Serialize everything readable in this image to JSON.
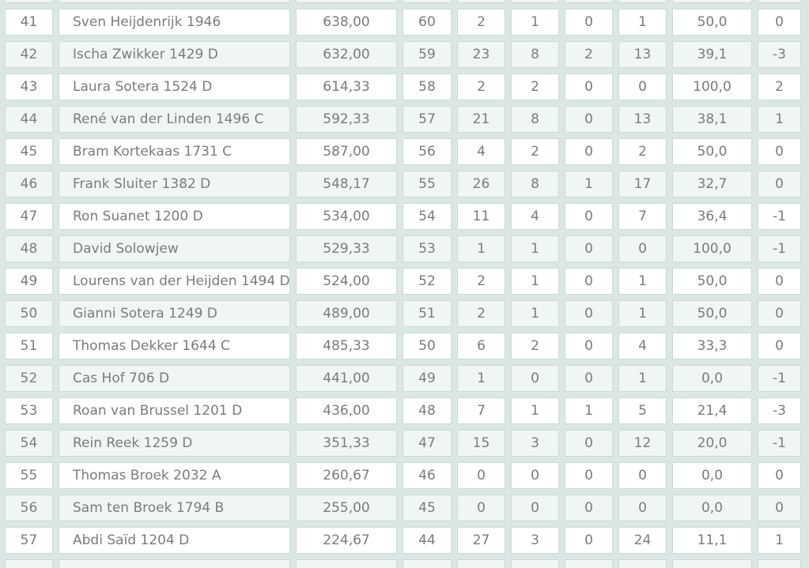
{
  "table": {
    "description": "standings-table-page-rows-41-57",
    "rows": [
      {
        "rank": "41",
        "player": "Sven Heijdenrijk 1946",
        "points": "638,00",
        "number": "60",
        "played": "2",
        "won": "1",
        "drawn": "0",
        "lost": "1",
        "percentage": "50,0",
        "change": "0"
      },
      {
        "rank": "42",
        "player": "Ischa Zwikker 1429 D",
        "points": "632,00",
        "number": "59",
        "played": "23",
        "won": "8",
        "drawn": "2",
        "lost": "13",
        "percentage": "39,1",
        "change": "-3"
      },
      {
        "rank": "43",
        "player": "Laura Sotera 1524 D",
        "points": "614,33",
        "number": "58",
        "played": "2",
        "won": "2",
        "drawn": "0",
        "lost": "0",
        "percentage": "100,0",
        "change": "2"
      },
      {
        "rank": "44",
        "player": "René van der Linden 1496 C",
        "points": "592,33",
        "number": "57",
        "played": "21",
        "won": "8",
        "drawn": "0",
        "lost": "13",
        "percentage": "38,1",
        "change": "1"
      },
      {
        "rank": "45",
        "player": "Bram Kortekaas 1731 C",
        "points": "587,00",
        "number": "56",
        "played": "4",
        "won": "2",
        "drawn": "0",
        "lost": "2",
        "percentage": "50,0",
        "change": "0"
      },
      {
        "rank": "46",
        "player": "Frank Sluiter 1382 D",
        "points": "548,17",
        "number": "55",
        "played": "26",
        "won": "8",
        "drawn": "1",
        "lost": "17",
        "percentage": "32,7",
        "change": "0"
      },
      {
        "rank": "47",
        "player": "Ron Suanet 1200 D",
        "points": "534,00",
        "number": "54",
        "played": "11",
        "won": "4",
        "drawn": "0",
        "lost": "7",
        "percentage": "36,4",
        "change": "-1"
      },
      {
        "rank": "48",
        "player": "David Solowjew",
        "points": "529,33",
        "number": "53",
        "played": "1",
        "won": "1",
        "drawn": "0",
        "lost": "0",
        "percentage": "100,0",
        "change": "-1"
      },
      {
        "rank": "49",
        "player": "Lourens van der Heijden 1494 D",
        "points": "524,00",
        "number": "52",
        "played": "2",
        "won": "1",
        "drawn": "0",
        "lost": "1",
        "percentage": "50,0",
        "change": "0"
      },
      {
        "rank": "50",
        "player": "Gianni Sotera 1249 D",
        "points": "489,00",
        "number": "51",
        "played": "2",
        "won": "1",
        "drawn": "0",
        "lost": "1",
        "percentage": "50,0",
        "change": "0"
      },
      {
        "rank": "51",
        "player": "Thomas Dekker 1644 C",
        "points": "485,33",
        "number": "50",
        "played": "6",
        "won": "2",
        "drawn": "0",
        "lost": "4",
        "percentage": "33,3",
        "change": "0"
      },
      {
        "rank": "52",
        "player": "Cas Hof 706 D",
        "points": "441,00",
        "number": "49",
        "played": "1",
        "won": "0",
        "drawn": "0",
        "lost": "1",
        "percentage": "0,0",
        "change": "-1"
      },
      {
        "rank": "53",
        "player": "Roan van Brussel 1201 D",
        "points": "436,00",
        "number": "48",
        "played": "7",
        "won": "1",
        "drawn": "1",
        "lost": "5",
        "percentage": "21,4",
        "change": "-3"
      },
      {
        "rank": "54",
        "player": "Rein Reek 1259 D",
        "points": "351,33",
        "number": "47",
        "played": "15",
        "won": "3",
        "drawn": "0",
        "lost": "12",
        "percentage": "20,0",
        "change": "-1"
      },
      {
        "rank": "55",
        "player": "Thomas Broek 2032 A",
        "points": "260,67",
        "number": "46",
        "played": "0",
        "won": "0",
        "drawn": "0",
        "lost": "0",
        "percentage": "0,0",
        "change": "0"
      },
      {
        "rank": "56",
        "player": "Sam ten Broek 1794 B",
        "points": "255,00",
        "number": "45",
        "played": "0",
        "won": "0",
        "drawn": "0",
        "lost": "0",
        "percentage": "0,0",
        "change": "0"
      },
      {
        "rank": "57",
        "player": "Abdi Saïd 1204 D",
        "points": "224,67",
        "number": "44",
        "played": "27",
        "won": "3",
        "drawn": "0",
        "lost": "24",
        "percentage": "11,1",
        "change": "1"
      }
    ]
  },
  "colors": {
    "page_background": "#dbe7e4",
    "cell_border": "#c9dcd8",
    "row_odd_background": "#ffffff",
    "row_even_background": "#eff6f5",
    "text": "#7c7c7c"
  }
}
